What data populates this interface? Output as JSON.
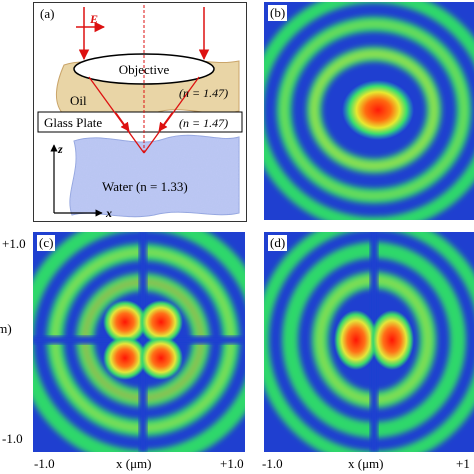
{
  "panels": {
    "a": {
      "label": "(a)",
      "e_field": "E",
      "objective": "Objective",
      "oil": "Oil",
      "oil_index": "(n = 1.47)",
      "glass_plate": "Glass Plate",
      "glass_index": "(n = 1.47)",
      "water": "Water (n = 1.33)",
      "z_axis": "z",
      "x_axis": "x"
    },
    "b": {
      "label": "(b)"
    },
    "c": {
      "label": "(c)"
    },
    "d": {
      "label": "(d)"
    }
  },
  "axes": {
    "y_top": "+1.0",
    "y_bottom": "-1.0",
    "y_label": "(μm)",
    "x_left": "-1.0",
    "x_mid": "x (μm)",
    "x_right": "+1.0",
    "x_left_d": "-1.0",
    "x_mid_d": "x (μm)",
    "x_right_d": "+1"
  },
  "colors": {
    "background_blue": "#1f3fd0",
    "ring_green": "#2fd86a",
    "ring_yellow": "#c6e43a",
    "core_red": "#ff2a10",
    "arrow_red": "#dd1111"
  }
}
